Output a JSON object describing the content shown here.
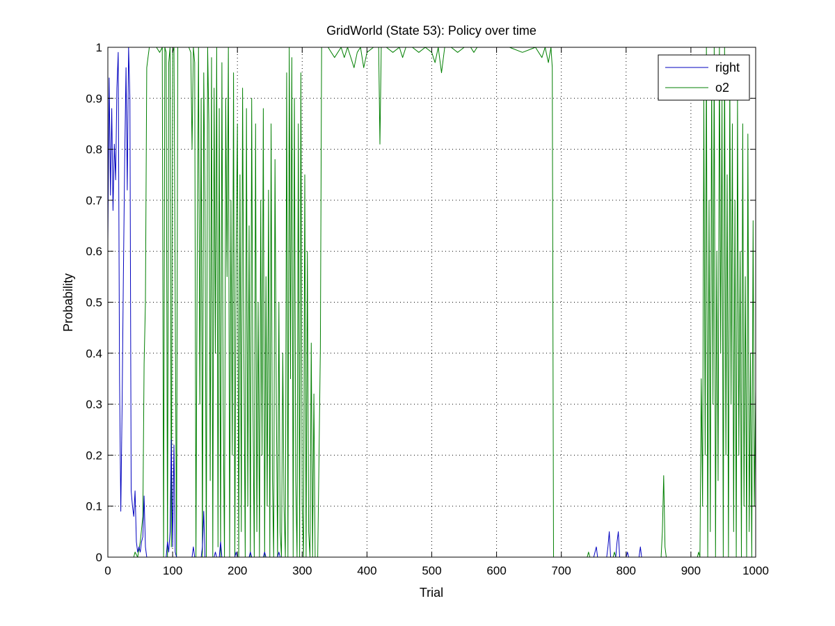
{
  "chart_data": {
    "type": "line",
    "title": "GridWorld (State 53): Policy over time",
    "xlabel": "Trial",
    "ylabel": "Probability",
    "xlim": [
      0,
      1000
    ],
    "ylim": [
      0,
      1
    ],
    "xticks": [
      0,
      100,
      200,
      300,
      400,
      500,
      600,
      700,
      800,
      900,
      1000
    ],
    "yticks": [
      0,
      0.1,
      0.2,
      0.3,
      0.4,
      0.5,
      0.6,
      0.7,
      0.8,
      0.9,
      1
    ],
    "grid": true,
    "legend_position": "top-right",
    "series": [
      {
        "name": "right",
        "color": "#0000bf",
        "points": [
          [
            0,
            0.62
          ],
          [
            2,
            0.94
          ],
          [
            4,
            0.71
          ],
          [
            6,
            0.88
          ],
          [
            8,
            0.68
          ],
          [
            10,
            0.81
          ],
          [
            12,
            0.74
          ],
          [
            14,
            0.92
          ],
          [
            16,
            0.99
          ],
          [
            18,
            0.35
          ],
          [
            20,
            0.09
          ],
          [
            22,
            0.3
          ],
          [
            24,
            0.55
          ],
          [
            26,
            0.78
          ],
          [
            28,
            0.96
          ],
          [
            30,
            0.72
          ],
          [
            32,
            1.0
          ],
          [
            34,
            0.9
          ],
          [
            36,
            0.13
          ],
          [
            38,
            0.1
          ],
          [
            40,
            0.08
          ],
          [
            42,
            0.13
          ],
          [
            44,
            0.03
          ],
          [
            46,
            0.01
          ],
          [
            48,
            0.02
          ],
          [
            50,
            0.01
          ],
          [
            52,
            0.03
          ],
          [
            54,
            0.04
          ],
          [
            56,
            0.12
          ],
          [
            58,
            0.02
          ],
          [
            60,
            0.0
          ],
          [
            90,
            0.0
          ],
          [
            92,
            0.03
          ],
          [
            94,
            0.01
          ],
          [
            96,
            0.05
          ],
          [
            98,
            0.23
          ],
          [
            100,
            0.02
          ],
          [
            102,
            0.22
          ],
          [
            104,
            0.01
          ],
          [
            106,
            0.0
          ],
          [
            130,
            0.0
          ],
          [
            132,
            0.02
          ],
          [
            134,
            0.0
          ],
          [
            144,
            0.0
          ],
          [
            146,
            0.02
          ],
          [
            148,
            0.09
          ],
          [
            150,
            0.0
          ],
          [
            164,
            0.0
          ],
          [
            166,
            0.01
          ],
          [
            168,
            0.0
          ],
          [
            172,
            0.0
          ],
          [
            174,
            0.03
          ],
          [
            176,
            0.0
          ],
          [
            196,
            0.0
          ],
          [
            198,
            0.01
          ],
          [
            200,
            0.0
          ],
          [
            218,
            0.0
          ],
          [
            220,
            0.01
          ],
          [
            222,
            0.0
          ],
          [
            240,
            0.0
          ],
          [
            242,
            0.01
          ],
          [
            244,
            0.0
          ],
          [
            262,
            0.0
          ],
          [
            264,
            0.01
          ],
          [
            266,
            0.0
          ],
          [
            700,
            0.0
          ],
          [
            750,
            0.0
          ],
          [
            752,
            0.01
          ],
          [
            754,
            0.02
          ],
          [
            756,
            0.0
          ],
          [
            770,
            0.0
          ],
          [
            772,
            0.02
          ],
          [
            774,
            0.05
          ],
          [
            776,
            0.0
          ],
          [
            784,
            0.0
          ],
          [
            786,
            0.03
          ],
          [
            788,
            0.05
          ],
          [
            790,
            0.0
          ],
          [
            800,
            0.0
          ],
          [
            802,
            0.01
          ],
          [
            804,
            0.0
          ],
          [
            820,
            0.0
          ],
          [
            822,
            0.02
          ],
          [
            824,
            0.0
          ],
          [
            1000,
            0.0
          ]
        ]
      },
      {
        "name": "o2",
        "color": "#007f00",
        "points": [
          [
            0,
            0.0
          ],
          [
            40,
            0.0
          ],
          [
            42,
            0.01
          ],
          [
            46,
            0.0
          ],
          [
            50,
            0.03
          ],
          [
            54,
            0.08
          ],
          [
            56,
            0.38
          ],
          [
            58,
            0.5
          ],
          [
            60,
            0.96
          ],
          [
            62,
            0.98
          ],
          [
            64,
            1.0
          ],
          [
            70,
            1.0
          ],
          [
            75,
            1.0
          ],
          [
            80,
            0.99
          ],
          [
            84,
            1.0
          ],
          [
            86,
            0.0
          ],
          [
            88,
            1.0
          ],
          [
            90,
            0.99
          ],
          [
            92,
            0.0
          ],
          [
            94,
            0.97
          ],
          [
            96,
            1.0
          ],
          [
            98,
            0.02
          ],
          [
            100,
            0.99
          ],
          [
            102,
            1.0
          ],
          [
            106,
            0.0
          ],
          [
            108,
            1.0
          ],
          [
            115,
            1.0
          ],
          [
            125,
            1.0
          ],
          [
            128,
            0.99
          ],
          [
            130,
            0.8
          ],
          [
            132,
            1.0
          ],
          [
            134,
            0.97
          ],
          [
            136,
            0.0
          ],
          [
            138,
            0.62
          ],
          [
            140,
            1.0
          ],
          [
            142,
            0.3
          ],
          [
            144,
            0.9
          ],
          [
            146,
            0.0
          ],
          [
            148,
            0.95
          ],
          [
            150,
            0.7
          ],
          [
            152,
            0.0
          ],
          [
            154,
            1.0
          ],
          [
            156,
            0.85
          ],
          [
            158,
            0.15
          ],
          [
            160,
            0.98
          ],
          [
            162,
            0.0
          ],
          [
            164,
            0.92
          ],
          [
            166,
            0.4
          ],
          [
            168,
            1.0
          ],
          [
            170,
            0.02
          ],
          [
            172,
            0.88
          ],
          [
            174,
            0.0
          ],
          [
            176,
            0.97
          ],
          [
            178,
            0.3
          ],
          [
            180,
            0.0
          ],
          [
            182,
            0.9
          ],
          [
            184,
            0.55
          ],
          [
            186,
            1.0
          ],
          [
            188,
            0.0
          ],
          [
            190,
            0.7
          ],
          [
            192,
            0.2
          ],
          [
            194,
            0.95
          ],
          [
            196,
            0.0
          ],
          [
            198,
            0.6
          ],
          [
            200,
            0.85
          ],
          [
            202,
            0.0
          ],
          [
            204,
            0.75
          ],
          [
            206,
            0.05
          ],
          [
            208,
            0.92
          ],
          [
            210,
            0.4
          ],
          [
            212,
            0.0
          ],
          [
            214,
            0.88
          ],
          [
            216,
            0.1
          ],
          [
            218,
            0.65
          ],
          [
            220,
            0.0
          ],
          [
            222,
            0.9
          ],
          [
            224,
            0.3
          ],
          [
            226,
            0.0
          ],
          [
            228,
            0.85
          ],
          [
            230,
            0.05
          ],
          [
            232,
            0.5
          ],
          [
            234,
            0.0
          ],
          [
            236,
            0.7
          ],
          [
            238,
            0.2
          ],
          [
            240,
            0.88
          ],
          [
            242,
            0.0
          ],
          [
            244,
            0.55
          ],
          [
            246,
            0.1
          ],
          [
            248,
            0.72
          ],
          [
            250,
            0.0
          ],
          [
            252,
            0.85
          ],
          [
            254,
            0.15
          ],
          [
            256,
            0.0
          ],
          [
            258,
            0.78
          ],
          [
            260,
            0.3
          ],
          [
            262,
            0.0
          ],
          [
            264,
            0.5
          ],
          [
            266,
            0.05
          ],
          [
            268,
            0.0
          ],
          [
            270,
            0.4
          ],
          [
            272,
            0.1
          ],
          [
            274,
            0.0
          ],
          [
            276,
            0.95
          ],
          [
            278,
            0.0
          ],
          [
            280,
            1.0
          ],
          [
            282,
            0.35
          ],
          [
            284,
            0.98
          ],
          [
            286,
            0.0
          ],
          [
            288,
            0.9
          ],
          [
            290,
            0.15
          ],
          [
            292,
            0.0
          ],
          [
            294,
            0.85
          ],
          [
            296,
            0.0
          ],
          [
            298,
            0.95
          ],
          [
            300,
            0.1
          ],
          [
            302,
            0.0
          ],
          [
            304,
            0.75
          ],
          [
            306,
            0.0
          ],
          [
            308,
            0.6
          ],
          [
            310,
            0.05
          ],
          [
            312,
            0.0
          ],
          [
            314,
            0.42
          ],
          [
            316,
            0.0
          ],
          [
            318,
            0.32
          ],
          [
            320,
            0.0
          ],
          [
            324,
            0.0
          ],
          [
            326,
            0.2
          ],
          [
            328,
            0.41
          ],
          [
            330,
            1.0
          ],
          [
            340,
            1.0
          ],
          [
            350,
            0.98
          ],
          [
            360,
            1.0
          ],
          [
            365,
            0.98
          ],
          [
            370,
            1.0
          ],
          [
            380,
            0.96
          ],
          [
            385,
            0.99
          ],
          [
            390,
            1.0
          ],
          [
            395,
            0.96
          ],
          [
            400,
            0.99
          ],
          [
            410,
            1.0
          ],
          [
            418,
            1.0
          ],
          [
            420,
            0.81
          ],
          [
            422,
            1.0
          ],
          [
            430,
            1.0
          ],
          [
            440,
            0.99
          ],
          [
            450,
            1.0
          ],
          [
            455,
            0.98
          ],
          [
            460,
            1.0
          ],
          [
            470,
            1.0
          ],
          [
            480,
            0.99
          ],
          [
            490,
            1.0
          ],
          [
            500,
            0.99
          ],
          [
            505,
            0.97
          ],
          [
            510,
            1.0
          ],
          [
            515,
            0.95
          ],
          [
            520,
            1.0
          ],
          [
            530,
            1.0
          ],
          [
            540,
            0.99
          ],
          [
            550,
            1.0
          ],
          [
            560,
            1.0
          ],
          [
            565,
            0.99
          ],
          [
            570,
            1.0
          ],
          [
            580,
            1.0
          ],
          [
            600,
            1.0
          ],
          [
            620,
            1.0
          ],
          [
            640,
            0.99
          ],
          [
            660,
            1.0
          ],
          [
            670,
            0.98
          ],
          [
            675,
            1.0
          ],
          [
            680,
            0.97
          ],
          [
            684,
            1.0
          ],
          [
            686,
            0.96
          ],
          [
            688,
            0.0
          ],
          [
            690,
            0.0
          ],
          [
            700,
            0.0
          ],
          [
            740,
            0.0
          ],
          [
            742,
            0.01
          ],
          [
            744,
            0.0
          ],
          [
            780,
            0.0
          ],
          [
            782,
            0.01
          ],
          [
            784,
            0.0
          ],
          [
            854,
            0.0
          ],
          [
            856,
            0.05
          ],
          [
            858,
            0.16
          ],
          [
            860,
            0.02
          ],
          [
            862,
            0.0
          ],
          [
            900,
            0.0
          ],
          [
            910,
            0.0
          ],
          [
            912,
            0.01
          ],
          [
            914,
            0.0
          ],
          [
            916,
            0.35
          ],
          [
            918,
            0.1
          ],
          [
            920,
            0.9
          ],
          [
            922,
            0.2
          ],
          [
            924,
            1.0
          ],
          [
            926,
            0.0
          ],
          [
            928,
            0.7
          ],
          [
            930,
            0.05
          ],
          [
            932,
            0.95
          ],
          [
            934,
            0.3
          ],
          [
            936,
            1.0
          ],
          [
            938,
            0.0
          ],
          [
            940,
            0.6
          ],
          [
            942,
            0.15
          ],
          [
            944,
            1.0
          ],
          [
            946,
            0.4
          ],
          [
            948,
            0.9
          ],
          [
            950,
            0.0
          ],
          [
            952,
            1.0
          ],
          [
            954,
            0.2
          ],
          [
            956,
            0.75
          ],
          [
            958,
            0.0
          ],
          [
            960,
            0.95
          ],
          [
            962,
            0.3
          ],
          [
            964,
            0.85
          ],
          [
            966,
            0.05
          ],
          [
            968,
            0.7
          ],
          [
            970,
            0.0
          ],
          [
            972,
            0.9
          ],
          [
            974,
            0.2
          ],
          [
            976,
            0.6
          ],
          [
            978,
            0.0
          ],
          [
            980,
            0.85
          ],
          [
            982,
            0.1
          ],
          [
            984,
            0.55
          ],
          [
            986,
            0.0
          ],
          [
            988,
            0.83
          ],
          [
            990,
            0.05
          ],
          [
            992,
            0.4
          ],
          [
            994,
            0.0
          ],
          [
            996,
            0.66
          ],
          [
            998,
            0.1
          ],
          [
            1000,
            0.33
          ]
        ]
      }
    ]
  }
}
